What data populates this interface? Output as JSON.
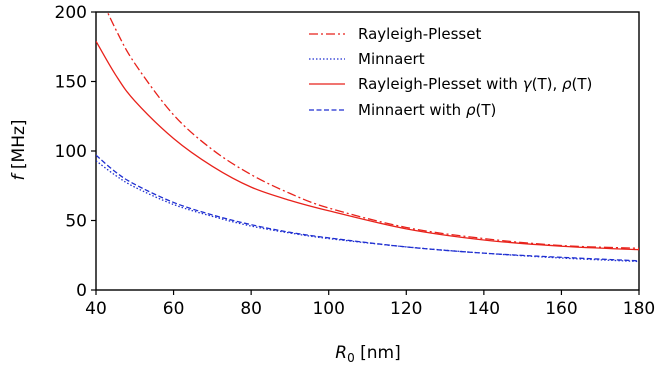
{
  "chart_data": {
    "type": "line",
    "title": "",
    "xlabel_symbol": "R",
    "xlabel_sub": "0",
    "xlabel_unit": " [nm]",
    "ylabel_symbol": "f",
    "ylabel_unit": " [MHz]",
    "xlim": [
      40,
      180
    ],
    "ylim": [
      0,
      200
    ],
    "xticks": [
      "40",
      "60",
      "80",
      "100",
      "120",
      "140",
      "160",
      "180"
    ],
    "yticks": [
      "0",
      "50",
      "100",
      "150",
      "200"
    ],
    "grid": false,
    "legend_position": "top-right",
    "series": [
      {
        "name": "Rayleigh-Plesset",
        "color": "#e8221b",
        "style": "dashdot",
        "x": [
          40,
          45,
          50,
          60,
          70,
          80,
          90,
          100,
          120,
          140,
          160,
          180
        ],
        "y": [
          218,
          188,
          163,
          126,
          101,
          83,
          69.5,
          59,
          45,
          37,
          32,
          30
        ]
      },
      {
        "name": "Minnaert",
        "color": "#1f2fd1",
        "style": "dotted",
        "x": [
          40,
          45,
          50,
          60,
          70,
          80,
          90,
          100,
          120,
          140,
          160,
          180
        ],
        "y": [
          93,
          82.5,
          74,
          61.5,
          53,
          46,
          41,
          37,
          31,
          26.5,
          23,
          20.5
        ]
      },
      {
        "name": "Rayleigh-Plesset with γ(T), ρ(T)",
        "color": "#e8221b",
        "style": "solid",
        "x": [
          40,
          45,
          50,
          60,
          70,
          80,
          90,
          100,
          120,
          140,
          160,
          180
        ],
        "y": [
          179,
          155,
          136,
          109,
          89,
          74,
          64.5,
          57,
          44,
          36,
          31.5,
          29
        ]
      },
      {
        "name": "Minnaert with ρ(T)",
        "color": "#1f2fd1",
        "style": "dashed",
        "x": [
          40,
          45,
          50,
          60,
          70,
          80,
          90,
          100,
          120,
          140,
          160,
          180
        ],
        "y": [
          97,
          85,
          76,
          63,
          54,
          47,
          41.5,
          37.5,
          31,
          26.5,
          23.5,
          21
        ]
      }
    ],
    "legend_entries": [
      {
        "text": "Rayleigh-Plesset"
      },
      {
        "text": "Minnaert"
      },
      {
        "pre": "Rayleigh-Plesset with ",
        "sym1": "γ",
        "mid": "(T), ",
        "sym2": "ρ",
        "post": "(T)"
      },
      {
        "pre": "Minnaert with ",
        "sym2": "ρ",
        "post": "(T)"
      }
    ]
  }
}
